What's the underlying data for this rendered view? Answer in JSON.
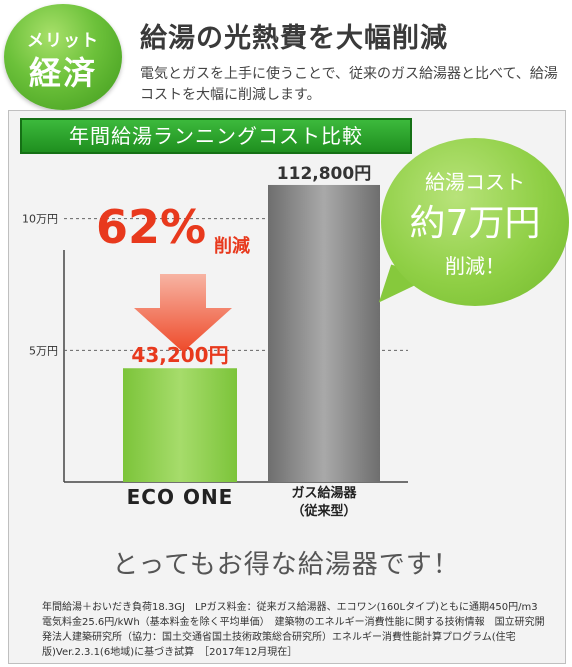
{
  "header": {
    "badge_small": "メリット",
    "badge_big": "経済",
    "headline": "給湯の光熱費を大幅削減",
    "subline": "電気とガスを上手に使うことで、従来のガス給湯器と比べて、給湯コストを大幅に削減します。"
  },
  "bubble": {
    "line1": "給湯コスト",
    "line2": "約7万円",
    "line3": "削減！"
  },
  "tagline": "とってもお得な給湯器です！",
  "footnote": "年間給湯＋おいだき負荷18.3GJ　LPガス料金：従来ガス給湯器、エコワン(160Lタイプ)ともに通期450円/m3　電気料金25.6円/kWh（基本料金を除く平均単価）　建築物のエネルギー消費性能に関する技術情報　国立研究開発法人建築研究所（協力：国土交通省国土技術政策総合研究所）エネルギー消費性能計算プログラム(住宅版)Ver.2.3.1(6地域)に基づき試算　［2017年12月現在］",
  "colors": {
    "green": "#2fa82f",
    "reduction_red": "#e8391d",
    "ecoone_bar": "#8fd14f",
    "gas_bar": "#8c8c8c"
  },
  "chart_data": {
    "type": "bar",
    "title": "年間給湯ランニングコスト比較",
    "categories": [
      "ECO ONE",
      "ガス給湯器（従来型）"
    ],
    "category_labels": [
      "ECO ONE",
      "ガス給湯器"
    ],
    "category_sublabels": [
      "",
      "（従来型）"
    ],
    "values": [
      43200,
      112800
    ],
    "value_labels": [
      "43,200円",
      "112,800円"
    ],
    "yticks": [
      50000,
      100000
    ],
    "ytick_labels": [
      "5万円",
      "10万円"
    ],
    "ylim": [
      0,
      120000
    ],
    "grid": true,
    "annotation_percent": "62%",
    "annotation_text": "削減"
  }
}
